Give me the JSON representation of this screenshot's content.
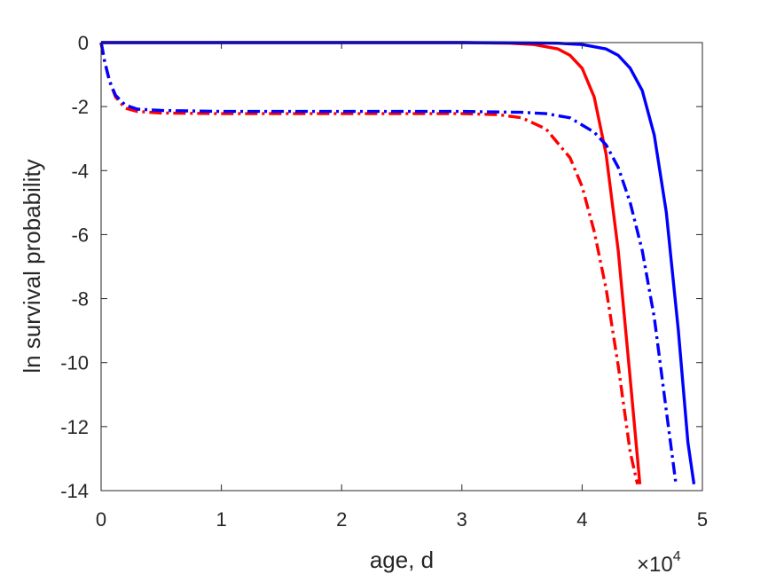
{
  "chart_data": {
    "type": "line",
    "xlabel": "age, d",
    "ylabel": "ln survival probability",
    "x_exponent": {
      "base": "×10",
      "power": "4"
    },
    "xlim": [
      0,
      50000
    ],
    "ylim": [
      -14,
      0
    ],
    "xticks": [
      0,
      10000,
      20000,
      30000,
      40000,
      50000
    ],
    "xtick_labels": [
      "0",
      "1",
      "2",
      "3",
      "4",
      "5"
    ],
    "yticks": [
      0,
      -2,
      -4,
      -6,
      -8,
      -10,
      -12,
      -14
    ],
    "ytick_labels": [
      "0",
      "-2",
      "-4",
      "-6",
      "-8",
      "-10",
      "-12",
      "-14"
    ],
    "grid": false,
    "legend": "none",
    "series": [
      {
        "color": "#ff0000",
        "style": "solid",
        "x": [
          0,
          5000,
          10000,
          20000,
          30000,
          34000,
          36000,
          38000,
          39000,
          40000,
          41000,
          42000,
          43000,
          44000,
          44800
        ],
        "y": [
          0,
          0,
          0,
          0,
          0,
          -0.02,
          -0.06,
          -0.2,
          -0.4,
          -0.8,
          -1.7,
          -3.5,
          -6.5,
          -10.5,
          -13.8
        ]
      },
      {
        "color": "#0000ff",
        "style": "solid",
        "x": [
          0,
          10000,
          20000,
          30000,
          36000,
          38000,
          40000,
          42000,
          43000,
          44000,
          45000,
          46000,
          47000,
          48000,
          48800,
          49300
        ],
        "y": [
          0,
          0,
          0,
          0,
          -0.01,
          -0.02,
          -0.06,
          -0.2,
          -0.4,
          -0.8,
          -1.5,
          -2.9,
          -5.3,
          -9.0,
          -12.5,
          -13.8
        ]
      },
      {
        "color": "#ff0000",
        "style": "dashdot",
        "x": [
          0,
          300,
          700,
          1200,
          2000,
          3000,
          5000,
          10000,
          20000,
          30000,
          33000,
          35000,
          37000,
          39000,
          40000,
          41000,
          42000,
          43000,
          44000,
          44600
        ],
        "y": [
          0,
          -0.6,
          -1.2,
          -1.7,
          -2.05,
          -2.15,
          -2.2,
          -2.22,
          -2.22,
          -2.22,
          -2.25,
          -2.35,
          -2.7,
          -3.6,
          -4.5,
          -5.9,
          -7.7,
          -10.1,
          -12.8,
          -13.8
        ]
      },
      {
        "color": "#0000ff",
        "style": "dashdot",
        "x": [
          0,
          300,
          700,
          1200,
          2000,
          3000,
          5000,
          10000,
          20000,
          30000,
          35000,
          37000,
          39000,
          41000,
          42000,
          43000,
          44000,
          45000,
          46000,
          47000,
          47800
        ],
        "y": [
          0,
          -0.6,
          -1.2,
          -1.65,
          -1.95,
          -2.08,
          -2.12,
          -2.15,
          -2.15,
          -2.15,
          -2.18,
          -2.22,
          -2.35,
          -2.8,
          -3.2,
          -3.9,
          -5.0,
          -6.5,
          -8.6,
          -11.5,
          -13.8
        ]
      }
    ]
  }
}
